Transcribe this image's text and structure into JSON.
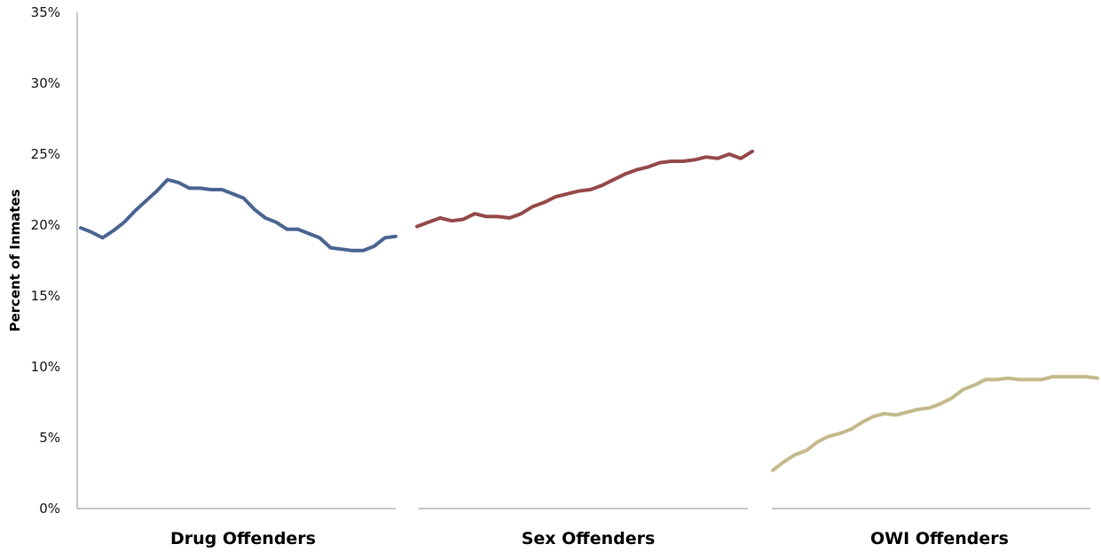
{
  "chart_data": {
    "type": "line",
    "title": "",
    "ylabel": "Percent of Inmates",
    "xlabel": "",
    "ylim": [
      0,
      35
    ],
    "yticks": [
      "0%",
      "5%",
      "10%",
      "15%",
      "20%",
      "25%",
      "30%",
      "35%"
    ],
    "ytick_values": [
      0,
      5,
      10,
      15,
      20,
      25,
      30,
      35
    ],
    "grid": false,
    "legend": "none",
    "panels": [
      {
        "label": "Drug Offenders",
        "color": "#4a6491",
        "values": [
          19.8,
          19.5,
          19.1,
          19.6,
          20.2,
          21.0,
          21.7,
          22.4,
          23.2,
          23.0,
          22.6,
          22.6,
          22.5,
          22.5,
          22.2,
          21.9,
          21.1,
          20.5,
          20.2,
          19.7,
          19.7,
          19.4,
          19.1,
          18.4,
          18.3,
          18.2,
          18.2,
          18.5,
          19.1,
          19.2
        ]
      },
      {
        "label": "Sex Offenders",
        "color": "#954848",
        "values": [
          19.9,
          20.2,
          20.5,
          20.3,
          20.4,
          20.8,
          20.6,
          20.6,
          20.5,
          20.8,
          21.3,
          21.6,
          22.0,
          22.2,
          22.4,
          22.5,
          22.8,
          23.2,
          23.6,
          23.9,
          24.1,
          24.4,
          24.5,
          24.5,
          24.6,
          24.8,
          24.7,
          25.0,
          24.7,
          25.2
        ]
      },
      {
        "label": "OWI Offenders",
        "color": "#c3b98b",
        "values": [
          2.7,
          3.3,
          3.8,
          4.1,
          4.7,
          5.1,
          5.3,
          5.6,
          6.1,
          6.5,
          6.7,
          6.6,
          6.8,
          7.0,
          7.1,
          7.4,
          7.8,
          8.4,
          8.7,
          9.1,
          9.1,
          9.2,
          9.1,
          9.1,
          9.1,
          9.3,
          9.3,
          9.3,
          9.3,
          9.2
        ]
      }
    ]
  }
}
